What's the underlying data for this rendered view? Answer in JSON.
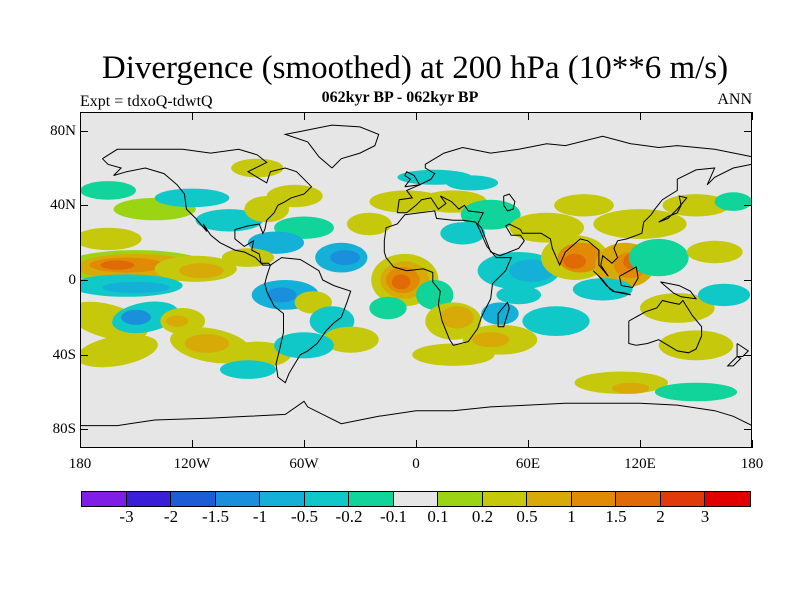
{
  "figure": {
    "title": "Divergence (smoothed) at 200 hPa (10**6 m/s)",
    "subtitle": "062kyr BP - 062kyr BP",
    "left_label": "Expt = tdxoQ-tdwtQ",
    "right_label": "ANN"
  },
  "axes": {
    "x_ticks": [
      "180",
      "120W",
      "60W",
      "0",
      "60E",
      "120E",
      "180"
    ],
    "x_values": [
      -180,
      -120,
      -60,
      0,
      60,
      120,
      180
    ],
    "y_ticks": [
      "80N",
      "40N",
      "0",
      "40S",
      "80S"
    ],
    "y_values": [
      80,
      40,
      0,
      -40,
      -80
    ]
  },
  "colorbar": {
    "colors": [
      "#7f1fe6",
      "#3a1fd8",
      "#1c5cd6",
      "#1a8fdc",
      "#14b0d8",
      "#10c8c8",
      "#10d49a",
      "#e6e6e6",
      "#9bd413",
      "#c6c80c",
      "#d8aa08",
      "#e08a06",
      "#e06a06",
      "#e03a0a",
      "#e00000"
    ],
    "labels": [
      "-3",
      "-2",
      "-1.5",
      "-1",
      "-0.5",
      "-0.2",
      "-0.1",
      "0.1",
      "0.2",
      "0.5",
      "1",
      "1.5",
      "2",
      "3"
    ]
  },
  "chart_data": {
    "type": "contour-map",
    "x_range": [
      -180,
      180
    ],
    "y_range": [
      -90,
      90
    ],
    "levels": [
      -3,
      -2,
      -1.5,
      -1,
      -0.5,
      -0.2,
      -0.1,
      0.1,
      0.2,
      0.5,
      1,
      1.5,
      2,
      3
    ],
    "background": "#e6e6e6",
    "features": [
      {
        "name": "central-pacific-positive-band",
        "lon": -152,
        "lat": 8,
        "value": 2
      },
      {
        "name": "central-pacific-positive-band-east",
        "lon": -125,
        "lat": 7,
        "value": 1
      },
      {
        "name": "africa-positive-center",
        "lon": -5,
        "lat": 0,
        "value": 2
      },
      {
        "name": "india-positive-center",
        "lon": 88,
        "lat": 10,
        "value": 1.5
      },
      {
        "name": "indonesia-positive-center",
        "lon": 115,
        "lat": 8,
        "value": 1.5
      },
      {
        "name": "south-indian-positive",
        "lon": 20,
        "lat": -20,
        "value": 1
      },
      {
        "name": "equatorial-atlantic-negative",
        "lon": -40,
        "lat": 10,
        "value": -1
      },
      {
        "name": "indian-ocean-negative",
        "lon": 60,
        "lat": 5,
        "value": -1
      },
      {
        "name": "south-america-negative",
        "lon": -70,
        "lat": -10,
        "value": -1
      },
      {
        "name": "south-pacific-negative",
        "lon": -150,
        "lat": -20,
        "value": -1
      }
    ]
  }
}
